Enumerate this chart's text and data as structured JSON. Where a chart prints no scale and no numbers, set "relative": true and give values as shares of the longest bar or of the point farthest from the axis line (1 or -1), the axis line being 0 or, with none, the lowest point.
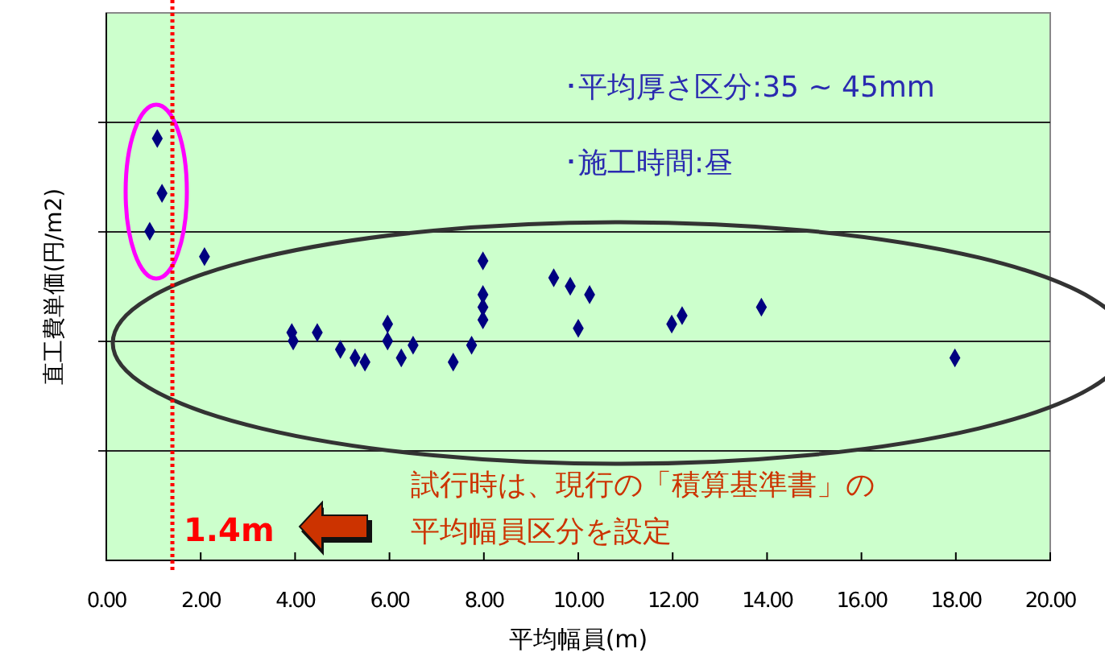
{
  "chart_data": {
    "type": "scatter",
    "xlabel": "平均幅員(m)",
    "ylabel": "直工費単価(円/m2)",
    "relative": true,
    "grid": "y",
    "marker": "diamond",
    "xlim": [
      0,
      20
    ],
    "xticks": [
      {
        "value": 0,
        "label": "0.00"
      },
      {
        "value": 2,
        "label": "2.00"
      },
      {
        "value": 4,
        "label": "4.00"
      },
      {
        "value": 6,
        "label": "6.00"
      },
      {
        "value": 8,
        "label": "8.00"
      },
      {
        "value": 10,
        "label": "10.00"
      },
      {
        "value": 12,
        "label": "12.00"
      },
      {
        "value": 14,
        "label": "14.00"
      },
      {
        "value": 16,
        "label": "16.00"
      },
      {
        "value": 18,
        "label": "18.00"
      },
      {
        "value": 20,
        "label": "20.00"
      }
    ],
    "series": [
      {
        "color": "#000080",
        "x": [
          1.08,
          1.18,
          0.92,
          2.08,
          3.93,
          3.96,
          4.47,
          4.96,
          5.27,
          5.48,
          5.96,
          5.96,
          6.25,
          6.5,
          7.35,
          7.74,
          7.98,
          7.98,
          7.98,
          7.98,
          9.48,
          9.83,
          10.24,
          10.0,
          11.98,
          12.2,
          13.88,
          17.98
        ],
        "values": [
          1,
          0.87,
          0.78,
          0.72,
          0.54,
          0.52,
          0.54,
          0.5,
          0.48,
          0.47,
          0.56,
          0.52,
          0.48,
          0.51,
          0.47,
          0.51,
          0.71,
          0.63,
          0.6,
          0.57,
          0.67,
          0.65,
          0.63,
          0.55,
          0.56,
          0.58,
          0.6,
          0.48
        ]
      }
    ],
    "ref_lines": [
      {
        "axis": "x",
        "value": 1.4,
        "label": "1.4m",
        "color": "#ff0000",
        "line_style": "dotted"
      }
    ],
    "annotations": [
      "･平均厚さ区分:35 ~ 45mm",
      "･施工時間:昼",
      "試行時は、現行の「積算基準書」の平均幅員区分を設定"
    ]
  }
}
